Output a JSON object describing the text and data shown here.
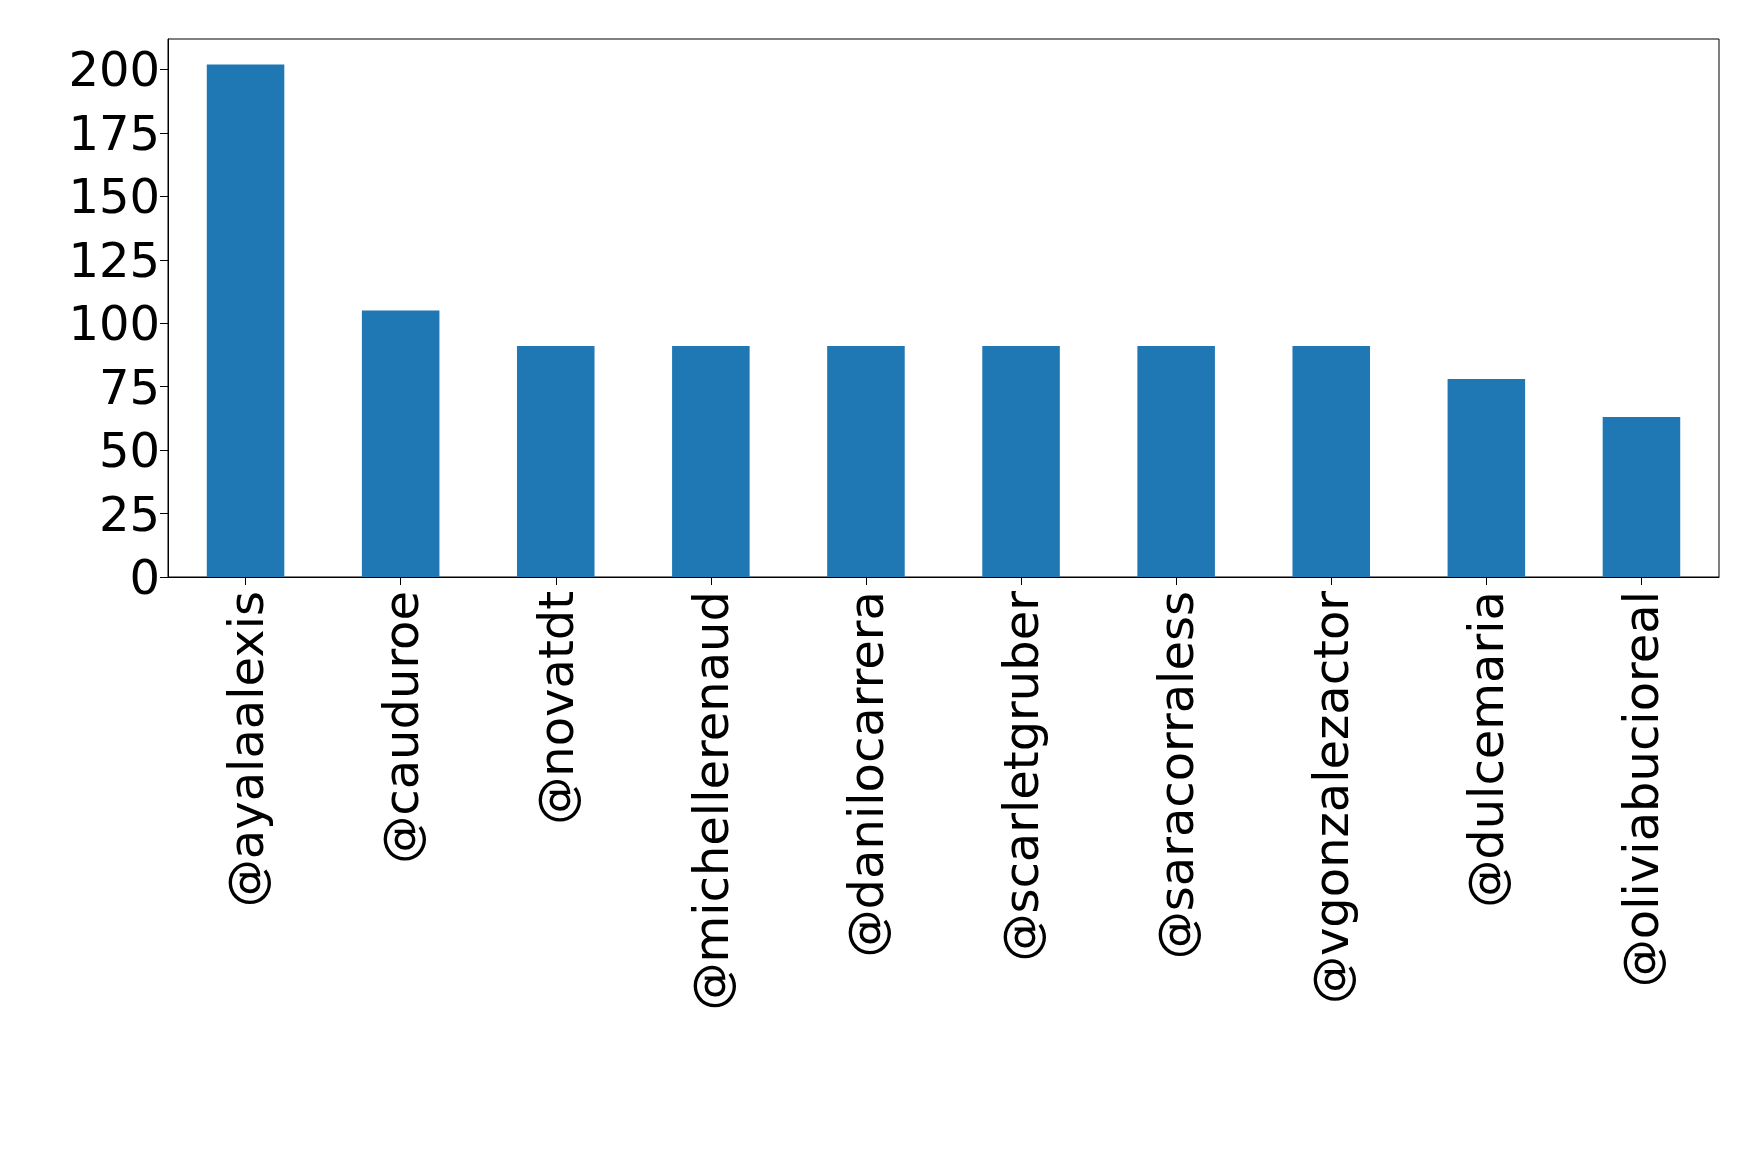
{
  "chart_data": {
    "type": "bar",
    "categories": [
      "@ayalaalexis",
      "@cauduroe",
      "@novatdt",
      "@michellerenaud",
      "@danilocarrera",
      "@scarletgruber",
      "@saracorraless",
      "@vgonzalezactor",
      "@dulcemaria",
      "@oliviabucioreal"
    ],
    "values": [
      202,
      105,
      91,
      91,
      91,
      91,
      91,
      91,
      78,
      63
    ],
    "color": "#1f77b4",
    "ylim": [
      0,
      212
    ],
    "yticks": [
      0,
      25,
      50,
      75,
      100,
      125,
      150,
      175,
      200
    ],
    "grid": false
  }
}
